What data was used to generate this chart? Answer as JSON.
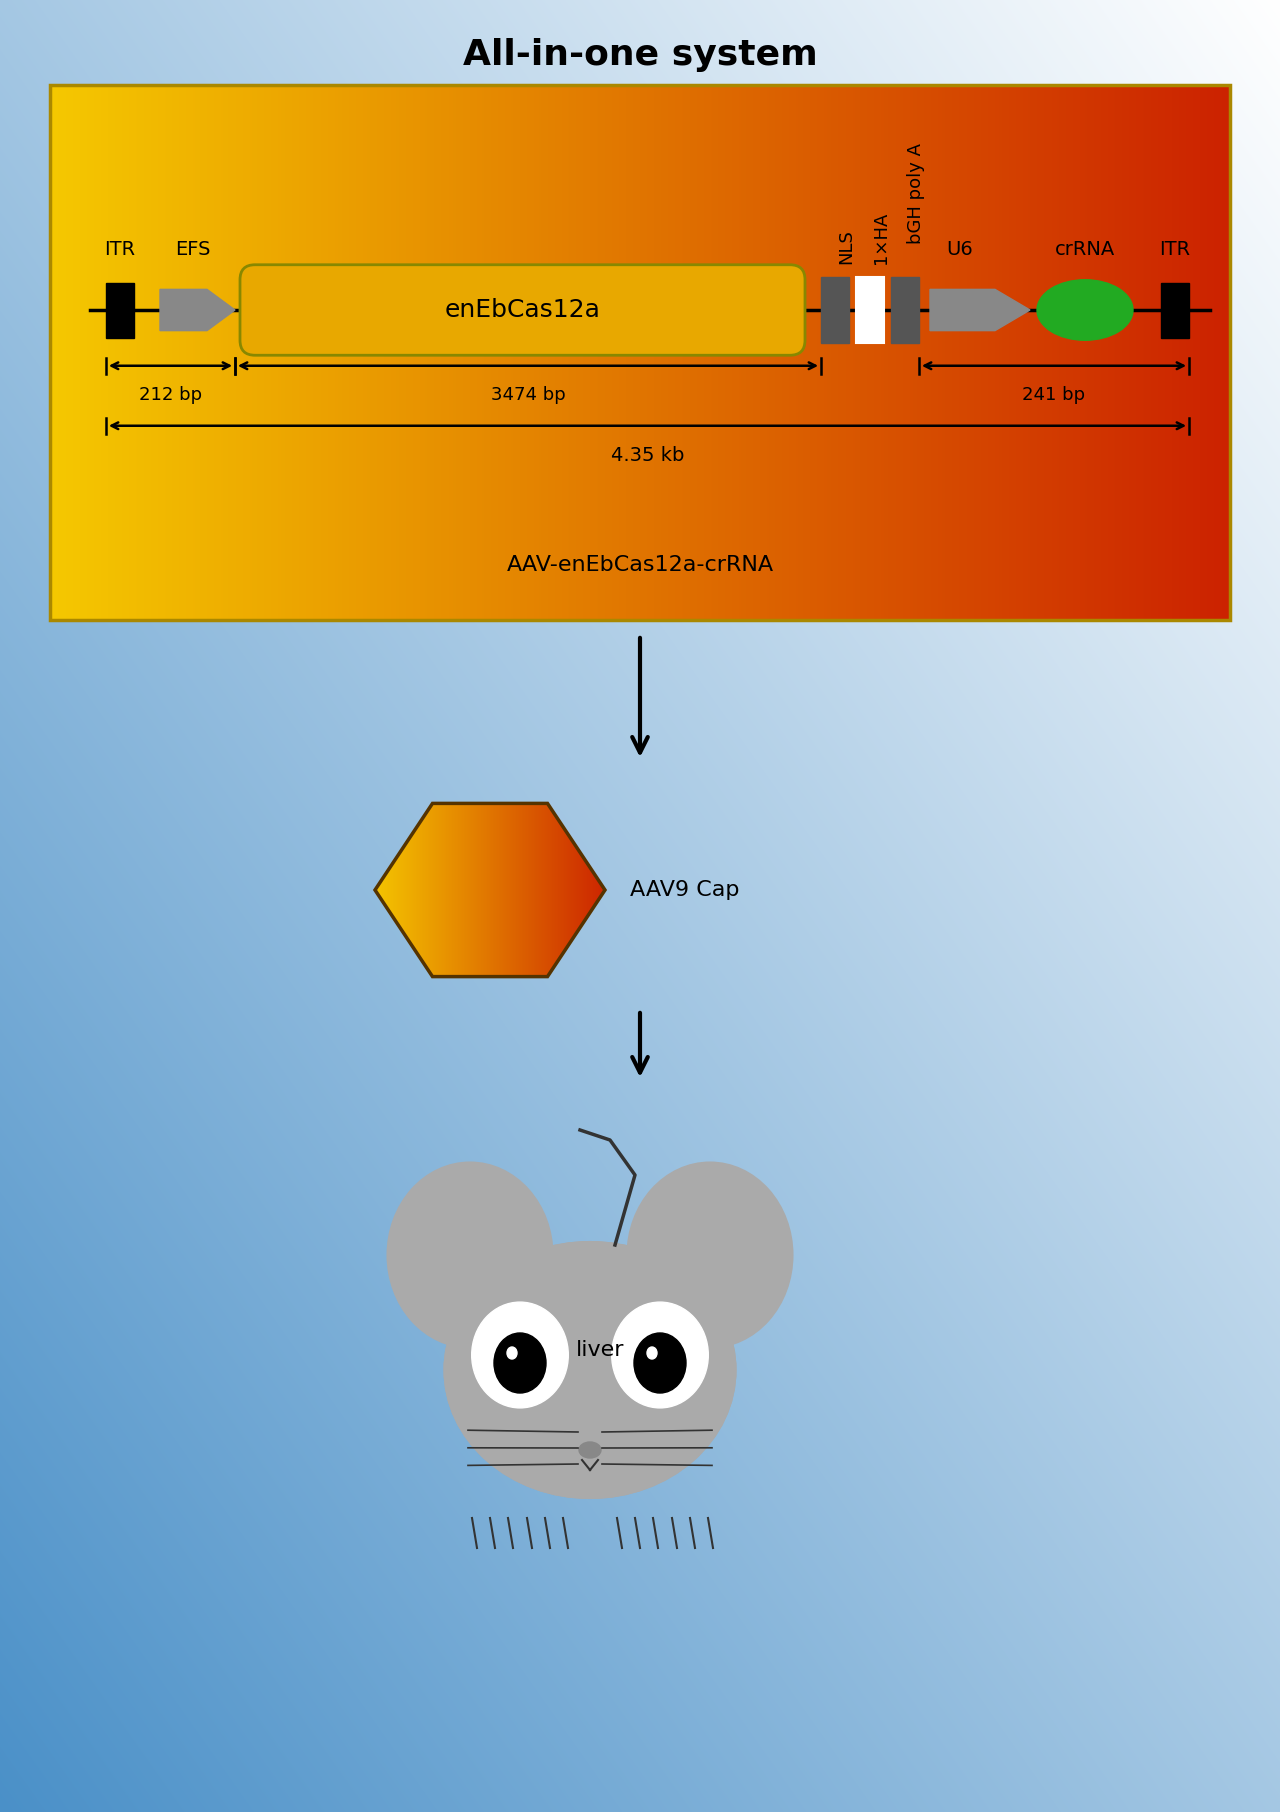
{
  "title": "All-in-one system",
  "title_fontsize": 26,
  "title_fontweight": "bold",
  "label_ITR1": "ITR",
  "label_EFS": "EFS",
  "label_enEbCas12a": "enEbCas12a",
  "label_NLS": "NLS",
  "label_1xHA": "1×HA",
  "label_bGH": "bGH poly A",
  "label_U6": "U6",
  "label_crRNA": "crRNA",
  "label_ITR2": "ITR",
  "bp_212": "212 bp",
  "bp_3474": "3474 bp",
  "bp_241": "241 bp",
  "kb_435": "4.35 kb",
  "aav_label": "AAV-enEbCas12a-crRNA",
  "aav9_label": "AAV9 Cap",
  "liver_label": "liver",
  "mouse_color": "#aaaaaa",
  "mouse_outline": "#333333",
  "panel_left_color": "#f5c800",
  "panel_right_color": "#cc2200",
  "bg_left_color": "#4a90c8",
  "bg_right_color": "#ffffff"
}
